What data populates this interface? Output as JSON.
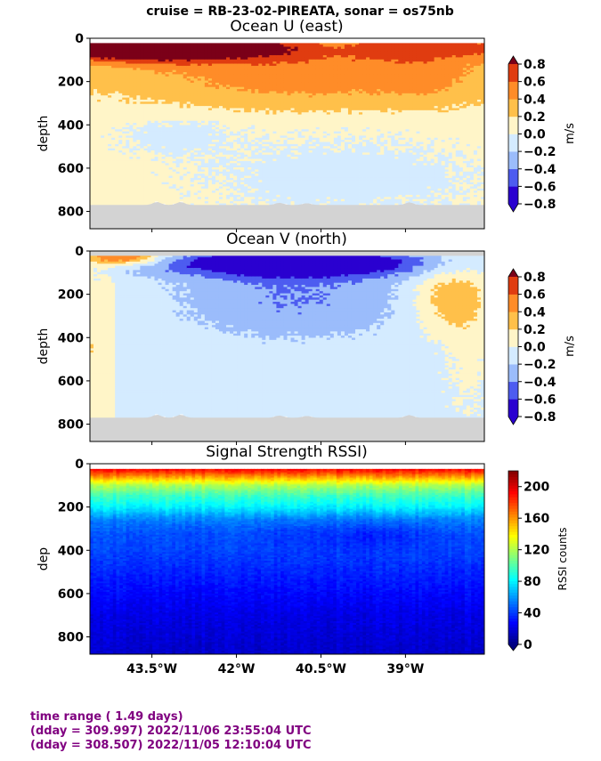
{
  "suptitle": "cruise = RB-23-02-PIREATA,  sonar = os75nb",
  "colors": {
    "land_mask": "#d3d3d3",
    "footer_text": "#800080",
    "frame": "#000000"
  },
  "chart_data": [
    {
      "type": "heatmap",
      "title": "Ocean U (east)",
      "ylabel": "depth",
      "ylim": [
        880,
        0
      ],
      "yticks": [
        "0",
        "200",
        "400",
        "600",
        "800"
      ],
      "x_ticks_shown": false,
      "colorbar": {
        "label": "m/s",
        "ticks": [
          "0.8",
          "0.6",
          "0.4",
          "0.2",
          "0.0",
          "−0.2",
          "−0.4",
          "−0.6",
          "−0.8"
        ],
        "levels": [
          -0.8,
          -0.6,
          -0.4,
          -0.2,
          0.0,
          0.2,
          0.4,
          0.6,
          0.8
        ],
        "colors": [
          "#2a00d0",
          "#4d5cf0",
          "#9bbcfb",
          "#d4ebff",
          "#fff5c8",
          "#ffc04a",
          "#ff8c28",
          "#e03c10",
          "#7b0018"
        ],
        "extend": "both"
      },
      "bottom_depth_approx": 770
    },
    {
      "type": "heatmap",
      "title": "Ocean V (north)",
      "ylabel": "depth",
      "ylim": [
        880,
        0
      ],
      "yticks": [
        "0",
        "200",
        "400",
        "600",
        "800"
      ],
      "x_ticks_shown": false,
      "colorbar": {
        "label": "m/s",
        "ticks": [
          "0.8",
          "0.6",
          "0.4",
          "0.2",
          "0.0",
          "−0.2",
          "−0.4",
          "−0.6",
          "−0.8"
        ],
        "levels": [
          -0.8,
          -0.6,
          -0.4,
          -0.2,
          0.0,
          0.2,
          0.4,
          0.6,
          0.8
        ],
        "colors": [
          "#2a00d0",
          "#4d5cf0",
          "#9bbcfb",
          "#d4ebff",
          "#fff5c8",
          "#ffc04a",
          "#ff8c28",
          "#e03c10",
          "#7b0018"
        ],
        "extend": "both"
      },
      "bottom_depth_approx": 770
    },
    {
      "type": "heatmap",
      "title": "Signal Strength RSSI)",
      "ylabel": "dep",
      "ylim": [
        880,
        0
      ],
      "yticks": [
        "0",
        "200",
        "400",
        "600",
        "800"
      ],
      "xticks": [
        "43.5°W",
        "42°W",
        "40.5°W",
        "39°W"
      ],
      "xtick_lons": [
        -43.5,
        -42.0,
        -40.5,
        -39.0
      ],
      "xlim": [
        -44.6,
        -37.6
      ],
      "colorbar": {
        "label": "RSSI counts",
        "ticks": [
          "200",
          "160",
          "120",
          "80",
          "40",
          "0"
        ],
        "range": [
          0,
          220
        ],
        "colormap": "jet",
        "extend": "min"
      },
      "profile_depth_rssi": [
        [
          30,
          190
        ],
        [
          60,
          160
        ],
        [
          100,
          120
        ],
        [
          150,
          95
        ],
        [
          200,
          80
        ],
        [
          260,
          55
        ],
        [
          320,
          45
        ],
        [
          400,
          42
        ],
        [
          500,
          35
        ],
        [
          600,
          28
        ],
        [
          700,
          22
        ],
        [
          880,
          16
        ]
      ]
    }
  ],
  "footer": {
    "line1": "time range ( 1.49 days)",
    "line2": "(dday = 309.997) 2022/11/06 23:55:04 UTC",
    "line3": "(dday = 308.507) 2022/11/05 12:10:04 UTC"
  }
}
